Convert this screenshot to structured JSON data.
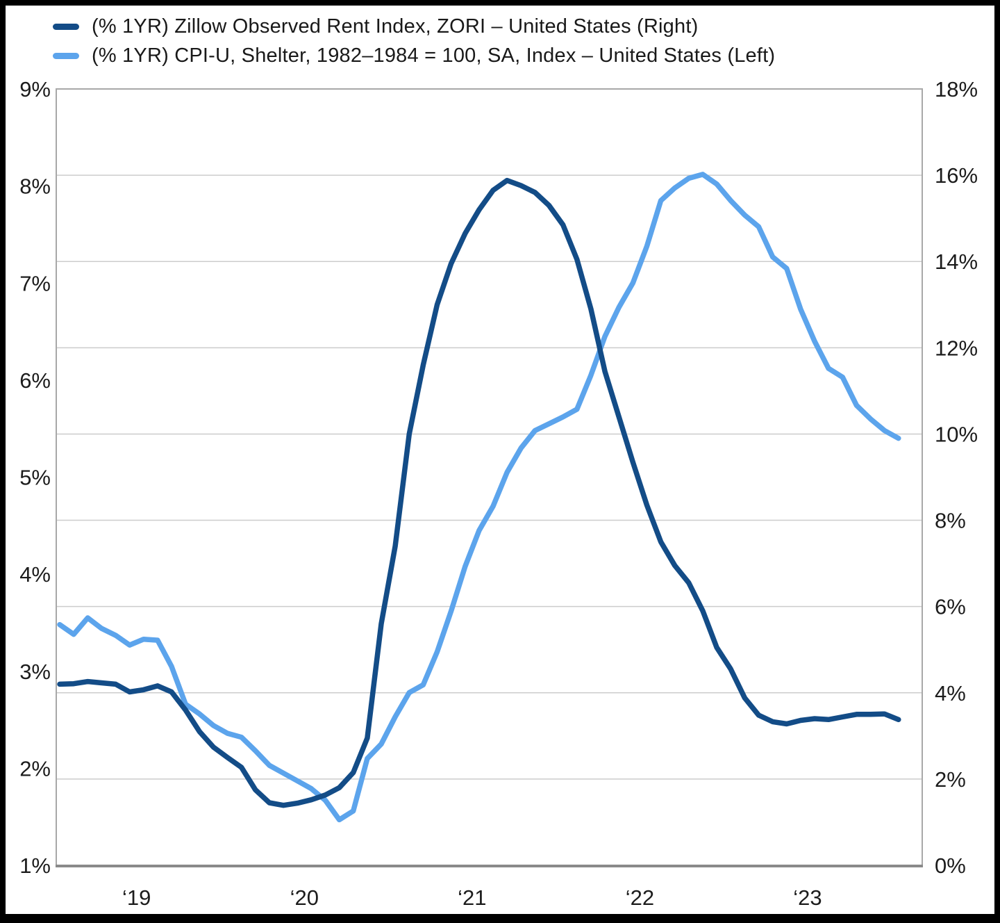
{
  "chart_data": {
    "type": "line",
    "frequency": "monthly",
    "x_range": "mid-2018 to mid-2023",
    "x_tick_labels": [
      "‘19",
      "‘20",
      "‘21",
      "‘22",
      "‘23"
    ],
    "x_tick_month_positions": [
      5.5,
      17.5,
      29.5,
      41.5,
      53.5
    ],
    "left_axis": {
      "min": 1,
      "max": 9,
      "tick_labels": [
        "9%",
        "8%",
        "7%",
        "6%",
        "5%",
        "4%",
        "3%",
        "2%",
        "1%"
      ],
      "tick_values": [
        9,
        8,
        7,
        6,
        5,
        4,
        3,
        2,
        1
      ]
    },
    "right_axis": {
      "min": 0,
      "max": 18,
      "tick_labels": [
        "18%",
        "16%",
        "14%",
        "12%",
        "10%",
        "8%",
        "6%",
        "4%",
        "2%",
        "0%"
      ],
      "tick_values": [
        18,
        16,
        14,
        12,
        10,
        8,
        6,
        4,
        2,
        0
      ]
    },
    "grid": {
      "horizontal_gridlines_at_right_axis_values": [
        16,
        14,
        12,
        10,
        8,
        6,
        4,
        2
      ],
      "vertical": false
    },
    "legend_position": "top-left",
    "series": [
      {
        "name": "(% 1YR) Zillow Observed Rent Index, ZORI – United States (Right)",
        "axis": "right",
        "color": "#134c87",
        "values": [
          4.2,
          4.21,
          4.26,
          4.23,
          4.2,
          4.02,
          4.07,
          4.16,
          4.02,
          3.6,
          3.1,
          2.74,
          2.5,
          2.27,
          1.75,
          1.45,
          1.39,
          1.44,
          1.52,
          1.63,
          1.8,
          2.15,
          2.95,
          5.6,
          7.4,
          10.0,
          11.6,
          13.0,
          13.95,
          14.65,
          15.2,
          15.65,
          15.88,
          15.76,
          15.6,
          15.3,
          14.85,
          14.05,
          12.9,
          11.45,
          10.4,
          9.35,
          8.35,
          7.5,
          6.95,
          6.55,
          5.9,
          5.05,
          4.55,
          3.88,
          3.48,
          3.33,
          3.28,
          3.36,
          3.4,
          3.38,
          3.44,
          3.5,
          3.5,
          3.51,
          3.38
        ]
      },
      {
        "name": "(% 1YR) CPI-U, Shelter, 1982–1984 = 100, SA, Index – United States (Left)",
        "axis": "left",
        "color": "#5ca4ec",
        "values": [
          3.48,
          3.38,
          3.55,
          3.44,
          3.37,
          3.27,
          3.33,
          3.32,
          3.05,
          2.66,
          2.56,
          2.44,
          2.36,
          2.32,
          2.18,
          2.03,
          1.95,
          1.87,
          1.79,
          1.67,
          1.47,
          1.56,
          2.1,
          2.25,
          2.53,
          2.78,
          2.86,
          3.2,
          3.62,
          4.08,
          4.45,
          4.7,
          5.05,
          5.3,
          5.48,
          5.55,
          5.62,
          5.7,
          6.05,
          6.45,
          6.75,
          7.0,
          7.38,
          7.85,
          7.98,
          8.08,
          8.12,
          8.02,
          7.85,
          7.7,
          7.58,
          7.27,
          7.15,
          6.73,
          6.4,
          6.12,
          6.03,
          5.74,
          5.6,
          5.48,
          5.4
        ]
      }
    ]
  }
}
